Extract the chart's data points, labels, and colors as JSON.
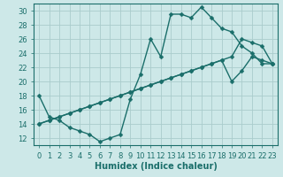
{
  "xlabel": "Humidex (Indice chaleur)",
  "ylabel": "",
  "background_color": "#cde8e8",
  "grid_color": "#aacccc",
  "line_color": "#1a6e6a",
  "xlim": [
    -0.5,
    23.5
  ],
  "ylim": [
    11,
    31
  ],
  "xticks": [
    0,
    1,
    2,
    3,
    4,
    5,
    6,
    7,
    8,
    9,
    10,
    11,
    12,
    13,
    14,
    15,
    16,
    17,
    18,
    19,
    20,
    21,
    22,
    23
  ],
  "yticks": [
    12,
    14,
    16,
    18,
    20,
    22,
    24,
    26,
    28,
    30
  ],
  "series": [
    {
      "x": [
        0,
        1,
        2,
        3,
        4,
        5,
        6,
        7,
        8,
        9,
        10,
        11,
        12,
        13,
        14,
        15,
        16,
        17,
        18,
        19,
        20,
        21,
        22,
        23
      ],
      "y": [
        18,
        15,
        14.5,
        13.5,
        13,
        12.5,
        11.5,
        12,
        12.5,
        17.5,
        21,
        26,
        23.5,
        29.5,
        29.5,
        29,
        30.5,
        29,
        27.5,
        27,
        25,
        24,
        22.5,
        22.5
      ]
    },
    {
      "x": [
        0,
        1,
        2,
        3,
        4,
        5,
        6,
        7,
        8,
        9,
        10,
        11,
        12,
        13,
        14,
        15,
        16,
        17,
        18,
        19,
        20,
        21,
        22,
        23
      ],
      "y": [
        14,
        14.5,
        15,
        15.5,
        16,
        16.5,
        17,
        17.5,
        18,
        18.5,
        19,
        19.5,
        20,
        20.5,
        21,
        21.5,
        22,
        22.5,
        23,
        23.5,
        26,
        25.5,
        25,
        22.5
      ]
    },
    {
      "x": [
        0,
        1,
        2,
        3,
        4,
        5,
        6,
        7,
        8,
        9,
        10,
        11,
        12,
        13,
        14,
        15,
        16,
        17,
        18,
        19,
        20,
        21,
        22,
        23
      ],
      "y": [
        14,
        14.5,
        15,
        15.5,
        16,
        16.5,
        17,
        17.5,
        18,
        18.5,
        19,
        19.5,
        20,
        20.5,
        21,
        21.5,
        22,
        22.5,
        23,
        20,
        21.5,
        23.5,
        23,
        22.5
      ]
    }
  ],
  "line_color_series": "#1a6e6a",
  "marker": "D",
  "marker_size": 2.5,
  "linewidth": 1.0,
  "fontsize_label": 7,
  "fontsize_tick": 6,
  "tick_color": "#1a6e6a"
}
